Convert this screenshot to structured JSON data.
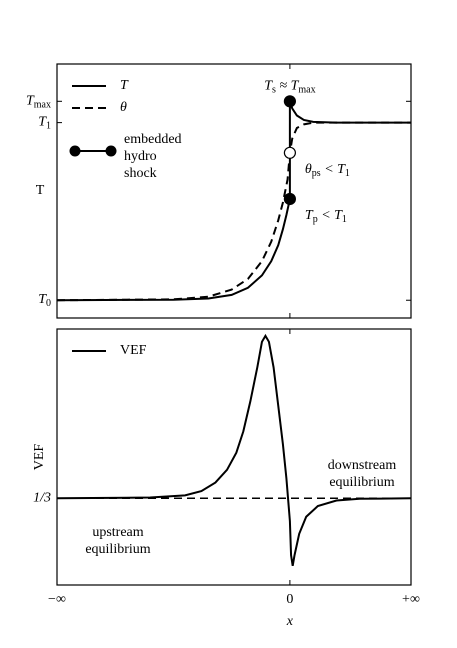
{
  "chart_data": [
    {
      "type": "line",
      "ylabel": "T",
      "xlim": [
        -1,
        0.52
      ],
      "ylim": [
        -0.1,
        1.33
      ],
      "xticks": [
        {
          "value": -1,
          "label": "−∞"
        },
        {
          "value": 0,
          "label": "0"
        },
        {
          "value": 0.52,
          "label": "+∞"
        }
      ],
      "yticks": [
        {
          "value": 0,
          "label": "T",
          "sub": "0"
        },
        {
          "value": 1,
          "label": "T",
          "sub": "1"
        },
        {
          "value": 1.12,
          "label": "T",
          "sub": "max"
        }
      ],
      "legend": "upper left",
      "series": [
        {
          "name": "T",
          "style": "solid",
          "color": "#000",
          "x": [
            -1,
            -0.5,
            -0.35,
            -0.25,
            -0.18,
            -0.12,
            -0.08,
            -0.05,
            -0.03,
            -0.015,
            0,
            0,
            0.01,
            0.03,
            0.06,
            0.1,
            0.2,
            0.52
          ],
          "values": [
            0,
            0.003,
            0.01,
            0.03,
            0.07,
            0.14,
            0.22,
            0.31,
            0.4,
            0.48,
            0.57,
            1.12,
            1.08,
            1.04,
            1.015,
            1.004,
            1.0,
            1.0
          ]
        },
        {
          "name": "θ",
          "style": "dashed",
          "color": "#000",
          "x": [
            -1,
            -0.5,
            -0.35,
            -0.25,
            -0.18,
            -0.12,
            -0.08,
            -0.05,
            -0.03,
            -0.01,
            0,
            0.01,
            0.03,
            0.06,
            0.1,
            0.52
          ],
          "values": [
            0,
            0.005,
            0.02,
            0.06,
            0.12,
            0.22,
            0.33,
            0.45,
            0.55,
            0.68,
            0.83,
            0.91,
            0.97,
            0.99,
            1.0,
            1.0
          ]
        }
      ],
      "marker_legend": [
        "embedded",
        "hydro",
        "shock"
      ],
      "markers": [
        {
          "x": 0,
          "y": 1.12,
          "filled": true,
          "label": [
            {
              "text": "T"
            },
            {
              "sub": "s"
            },
            {
              "text": " ≈ T"
            },
            {
              "sub": "max"
            }
          ]
        },
        {
          "x": 0,
          "y": 0.83,
          "filled": false,
          "label": [
            {
              "text": "θ"
            },
            {
              "sub": "ps"
            },
            {
              "text": " < T"
            },
            {
              "sub": "1"
            }
          ]
        },
        {
          "x": 0,
          "y": 0.57,
          "filled": true,
          "label": [
            {
              "text": "T"
            },
            {
              "sub": "p"
            },
            {
              "text": " < T"
            },
            {
              "sub": "1"
            }
          ]
        }
      ]
    },
    {
      "type": "line",
      "ylabel": "VEF",
      "xlabel": "x",
      "xlim": [
        -1,
        0.52
      ],
      "ylim": [
        0.13,
        0.73
      ],
      "xticks": [
        {
          "value": -1,
          "label": "−∞"
        },
        {
          "value": 0,
          "label": "0"
        },
        {
          "value": 0.52,
          "label": "+∞"
        }
      ],
      "yticks": [
        {
          "value": 0.3333,
          "label": "1/3"
        }
      ],
      "hline": 0.3333,
      "legend": "upper left",
      "series": [
        {
          "name": "VEF",
          "style": "solid",
          "color": "#000",
          "x": [
            -1,
            -0.6,
            -0.45,
            -0.38,
            -0.32,
            -0.27,
            -0.23,
            -0.2,
            -0.17,
            -0.14,
            -0.12,
            -0.105,
            -0.09,
            -0.07,
            -0.05,
            -0.03,
            -0.015,
            0,
            0.005,
            0.012,
            0.02,
            0.04,
            0.07,
            0.12,
            0.2,
            0.3,
            0.52
          ],
          "values": [
            0.3333,
            0.335,
            0.34,
            0.35,
            0.37,
            0.4,
            0.44,
            0.49,
            0.56,
            0.64,
            0.7,
            0.714,
            0.7,
            0.64,
            0.55,
            0.46,
            0.38,
            0.28,
            0.2,
            0.175,
            0.2,
            0.25,
            0.29,
            0.315,
            0.328,
            0.332,
            0.3333
          ]
        }
      ],
      "annotations": [
        [
          "downstream",
          "equilibrium"
        ],
        [
          "upstream",
          "equilibrium"
        ]
      ]
    }
  ]
}
